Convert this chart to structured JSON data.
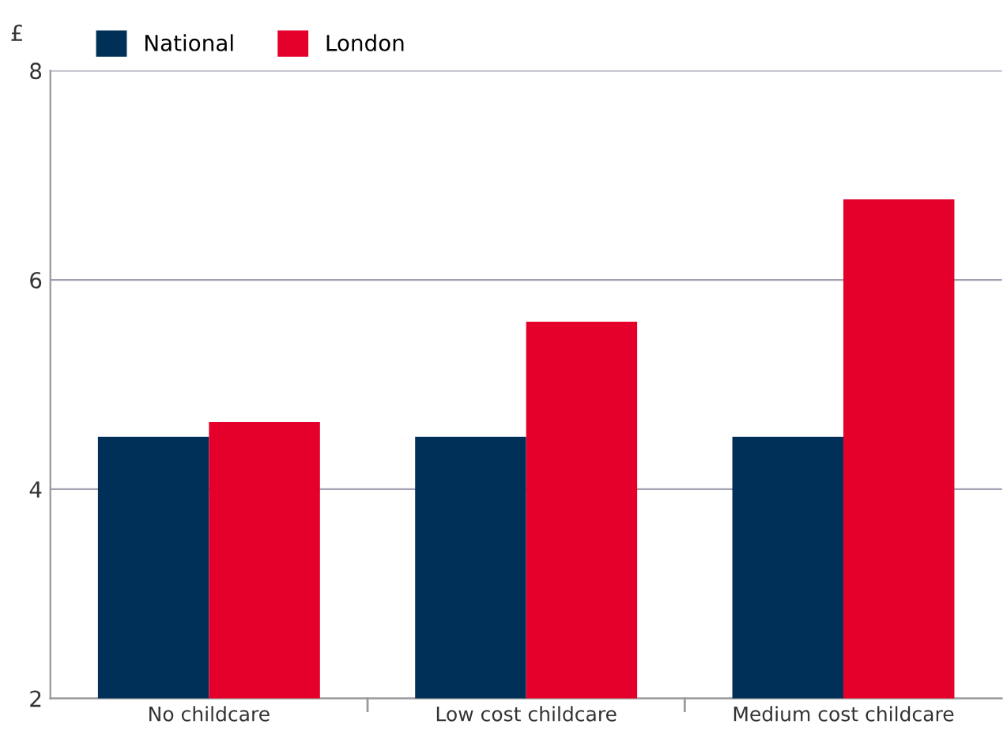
{
  "chart_data": {
    "type": "bar",
    "ylabel": "£",
    "categories": [
      "No childcare",
      "Low cost childcare",
      "Medium cost childcare"
    ],
    "series": [
      {
        "name": "National",
        "color": "#003057",
        "values": [
          4.5,
          4.5,
          4.5
        ]
      },
      {
        "name": "London",
        "color": "#e4002b",
        "values": [
          4.64,
          5.6,
          6.77
        ]
      }
    ],
    "ylim": [
      2,
      8
    ],
    "yticks": [
      2,
      4,
      6,
      8
    ],
    "grid": "y",
    "legend": "top left"
  }
}
